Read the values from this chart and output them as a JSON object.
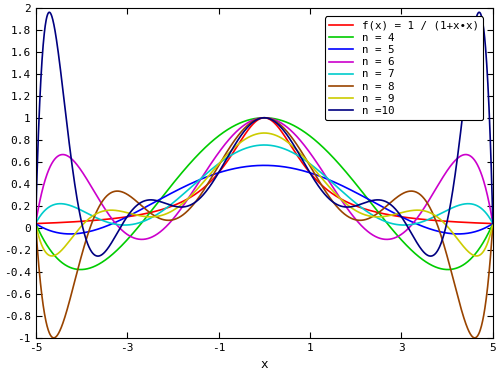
{
  "title": "",
  "xlabel": "x",
  "xlim": [
    -5,
    5
  ],
  "ylim": [
    -1,
    2
  ],
  "xticks": [
    -5,
    -3,
    -1,
    1,
    3,
    5
  ],
  "yticks": [
    -1,
    -0.8,
    -0.6,
    -0.4,
    -0.2,
    0,
    0.2,
    0.4,
    0.6,
    0.8,
    1,
    1.2,
    1.4,
    1.6,
    1.8,
    2
  ],
  "n_values": [
    4,
    5,
    6,
    7,
    8,
    9,
    10
  ],
  "colors": {
    "f": "#ff0000",
    "4": "#00cc00",
    "5": "#0000ff",
    "6": "#cc00cc",
    "7": "#00cccc",
    "8": "#994400",
    "9": "#cccc00",
    "10": "#000080"
  },
  "legend_labels": {
    "f": "f(x) = 1 / (1+x•x)",
    "4": "n = 4",
    "5": "n = 5",
    "6": "n = 6",
    "7": "n = 7",
    "8": "n = 8",
    "9": "n = 9",
    "10": "n =10"
  },
  "background_color": "#ffffff",
  "linewidth": 1.2
}
